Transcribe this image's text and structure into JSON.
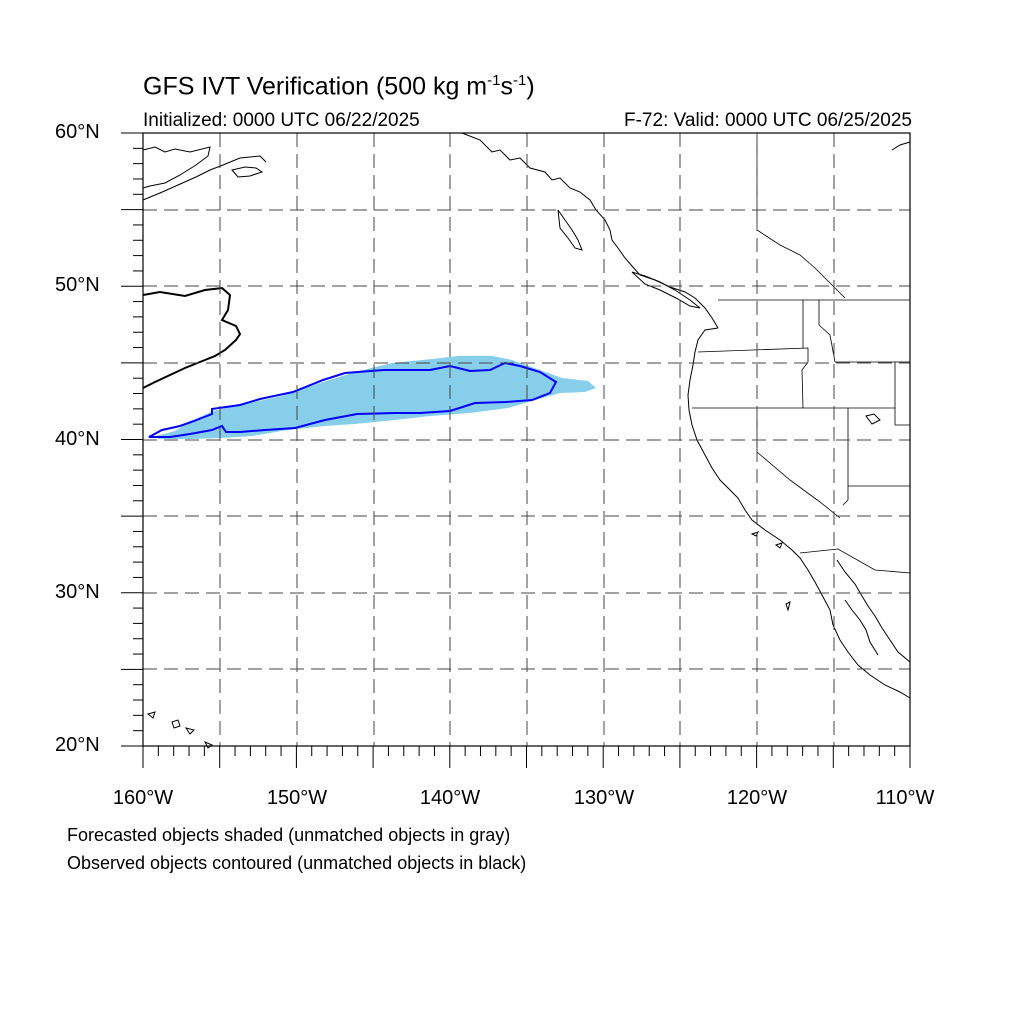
{
  "header": {
    "title_main": "GFS IVT Verification (500 kg m",
    "title_exp1": "-1",
    "title_mid": "s",
    "title_exp2": "-1",
    "title_end": ")",
    "initialized": "Initialized: 0000 UTC 06/22/2025",
    "valid": "F-72: Valid: 0000 UTC 06/25/2025"
  },
  "axes": {
    "lat_labels": [
      "60°N",
      "50°N",
      "40°N",
      "30°N",
      "20°N"
    ],
    "lon_labels": [
      "160°W",
      "150°W",
      "140°W",
      "130°W",
      "120°W",
      "110°W"
    ],
    "lat_range": [
      20,
      60
    ],
    "lon_range": [
      -160,
      -110
    ],
    "grid_spacing_deg": 5,
    "grid": "dashed"
  },
  "legend": {
    "line1": "Forecasted objects shaded (unmatched objects in gray)",
    "line2": "Observed objects contoured (unmatched objects in black)"
  },
  "colors": {
    "forecast_fill": "#87ceeb",
    "observed_contour": "#0000ff",
    "coastline": "#000000",
    "grid": "#444444"
  }
}
